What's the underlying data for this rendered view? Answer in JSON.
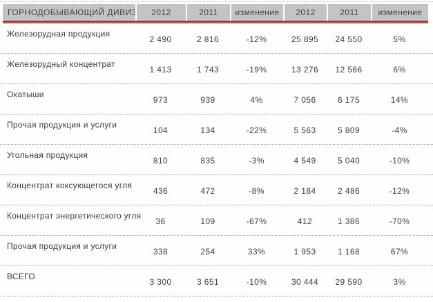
{
  "chart_data": {
    "type": "table",
    "title": "ГОРНОДОБЫВАЮЩИЙ ДИВИЗИОН",
    "columns": [
      "",
      "2012",
      "2011",
      "изменение",
      "2012",
      "2011",
      "изменение"
    ],
    "rows": [
      [
        "Железорудная продукция",
        "2 490",
        "2 816",
        "-12%",
        "25 895",
        "24 550",
        "5%"
      ],
      [
        "Железорудный концентрат",
        "1 413",
        "1 743",
        "-19%",
        "13 276",
        "12 566",
        "6%"
      ],
      [
        "Окатыши",
        "973",
        "939",
        "4%",
        "7 056",
        "6 175",
        "14%"
      ],
      [
        "Прочая продукция и услуги",
        "104",
        "134",
        "-22%",
        "5 563",
        "5 809",
        "-4%"
      ],
      [
        "Угольная продукция",
        "810",
        "835",
        "-3%",
        "4 549",
        "5 040",
        "-10%"
      ],
      [
        "Концентрат коксующегося угля",
        "436",
        "472",
        "-8%",
        "2 184",
        "2 486",
        "-12%"
      ],
      [
        "Концентрат энергетического угля",
        "36",
        "109",
        "-67%",
        "412",
        "1 386",
        "-70%"
      ],
      [
        "Прочая продукция и услуги",
        "338",
        "254",
        "33%",
        "1 953",
        "1 168",
        "67%"
      ],
      [
        "ВСЕГО",
        "3 300",
        "3 651",
        "-10%",
        "30 444",
        "29 590",
        "3%"
      ]
    ],
    "layout": {
      "grid": "dotted-row-separators",
      "header_style": "gray-cells-with-red-underline"
    }
  },
  "colors": {
    "header_bg": "#c4c4c4",
    "accent_red_dark": "#8e3734",
    "accent_red_light": "#b4615b",
    "text": "#3d3d3d",
    "row_divider": "#a6a6a6"
  }
}
